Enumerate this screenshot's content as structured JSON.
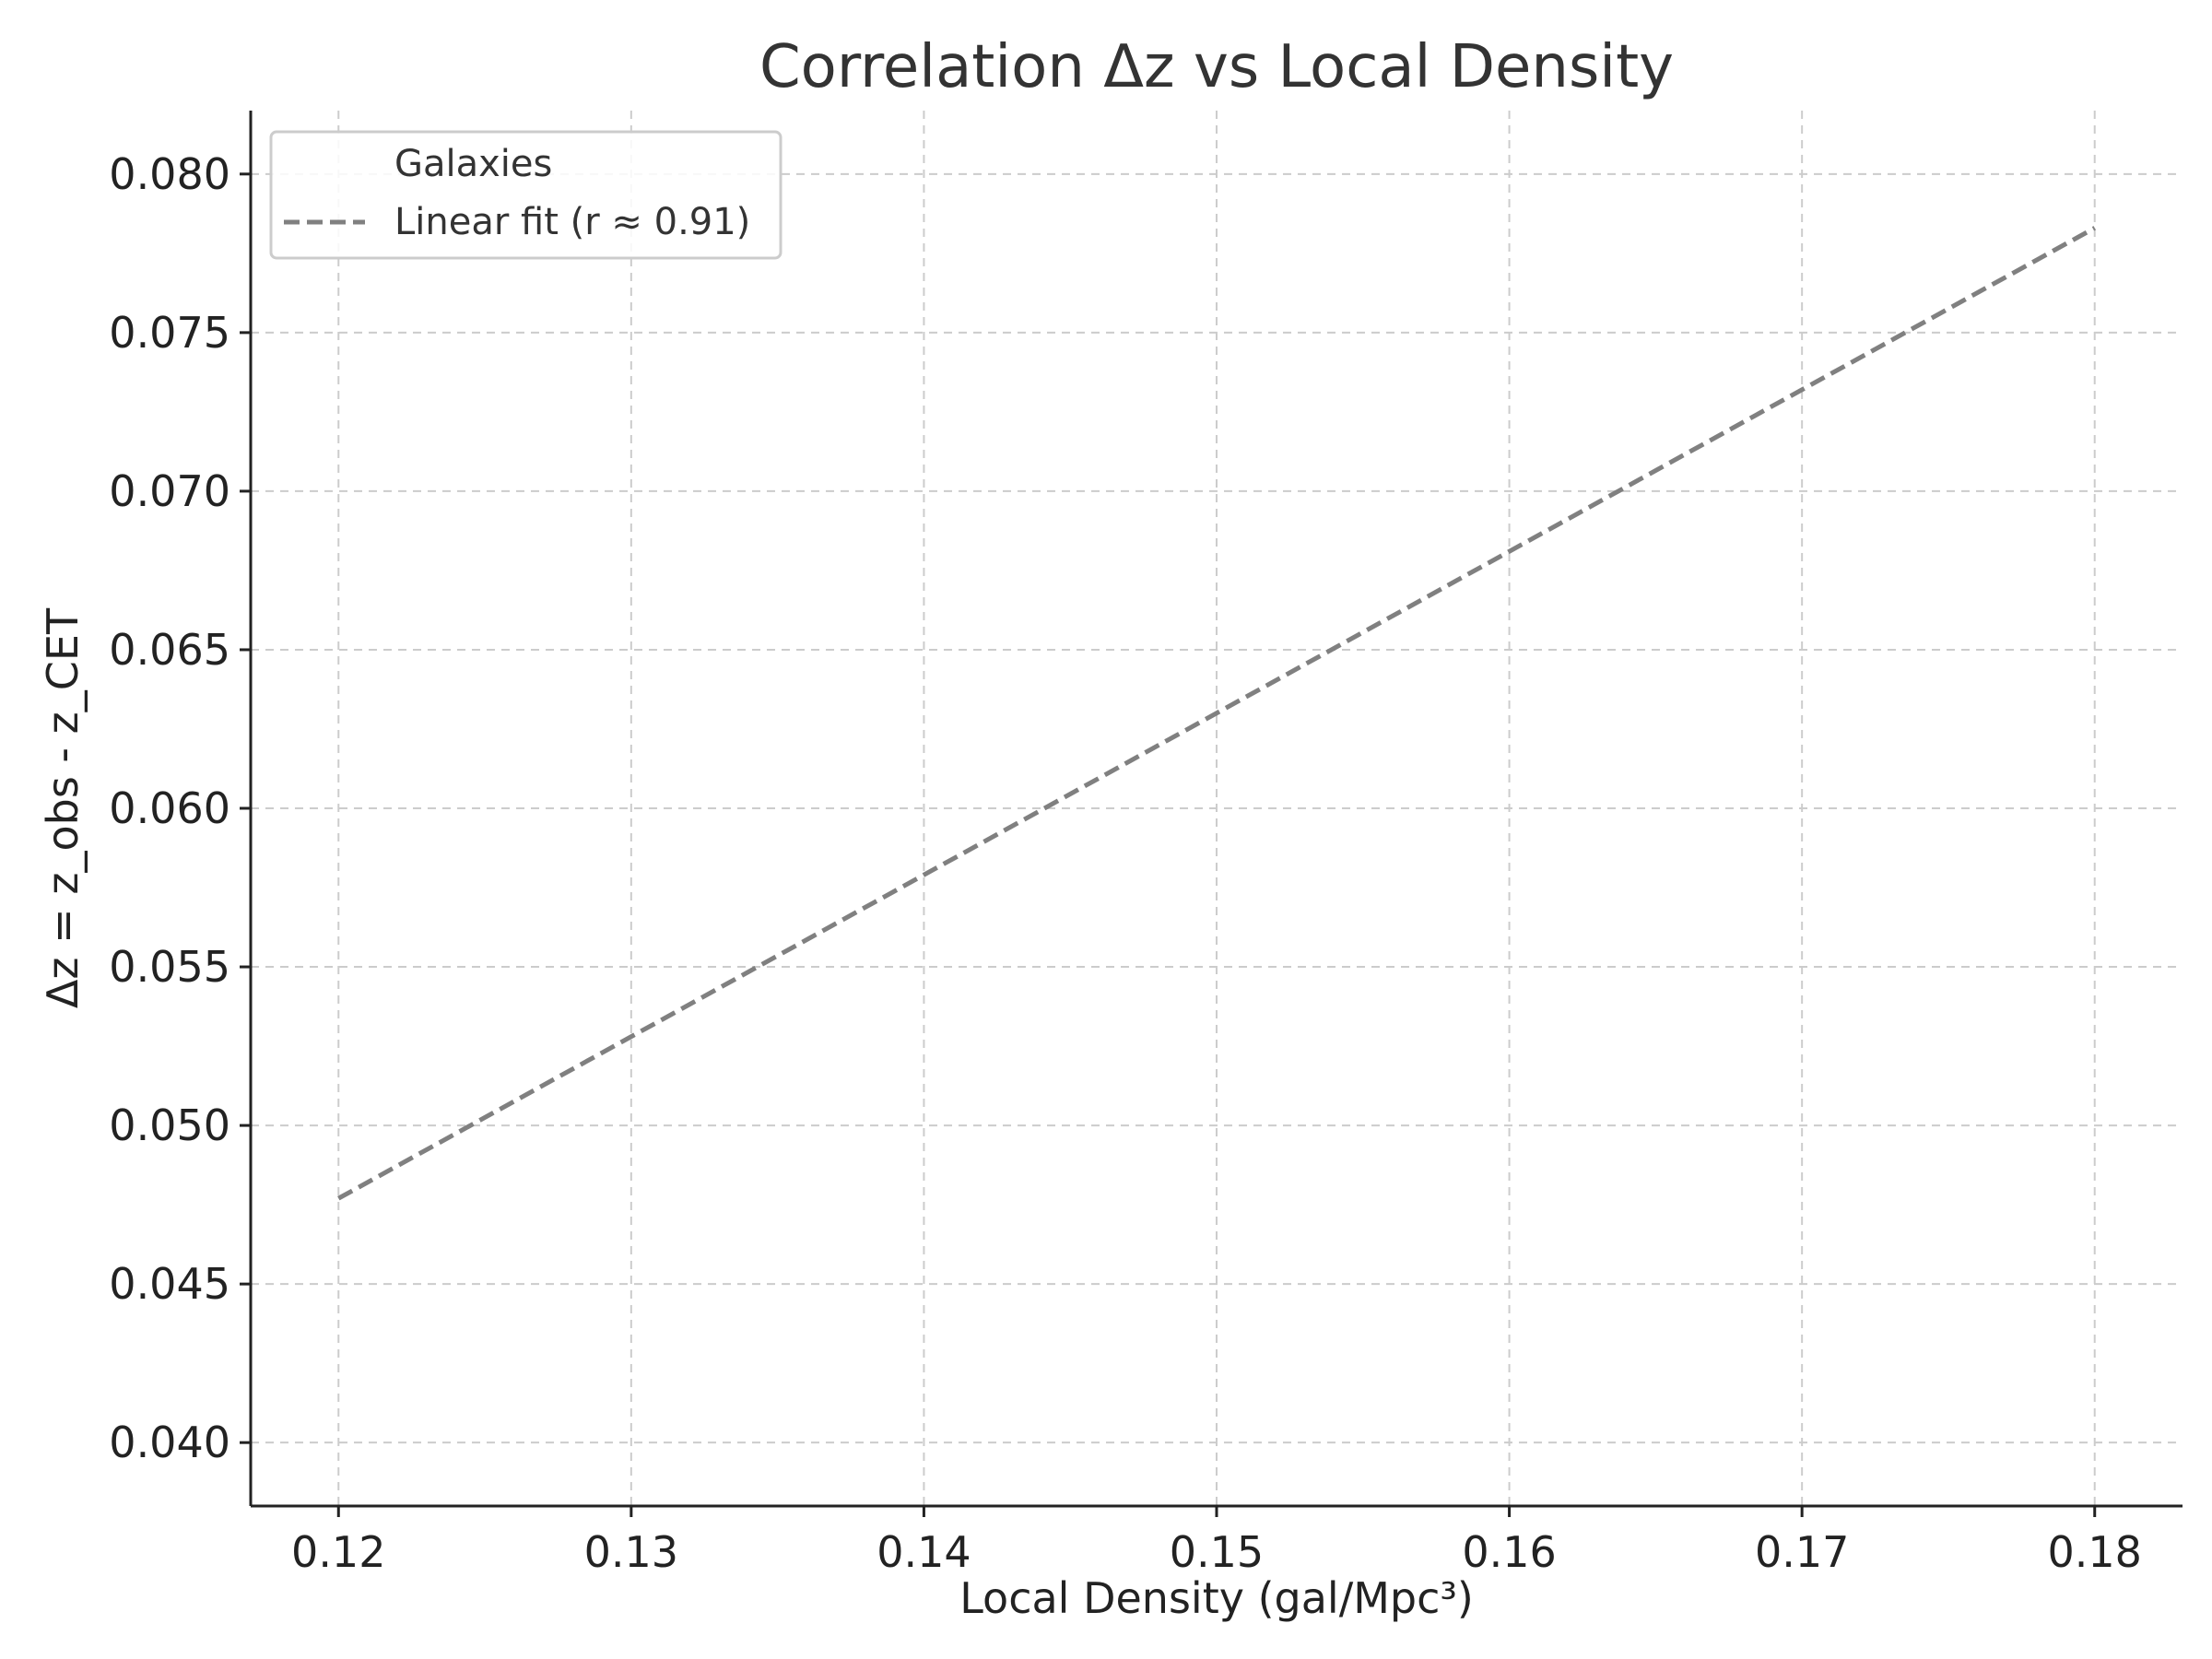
{
  "chart_data": {
    "type": "line",
    "title": "Correlation Δz vs Local Density",
    "xlabel": "Local Density (gal/Mpc³)",
    "ylabel": "Δz = z_obs - z_CET",
    "xlim": [
      0.117,
      0.183
    ],
    "ylim": [
      0.038,
      0.082
    ],
    "xticks": [
      0.12,
      0.13,
      0.14,
      0.15,
      0.16,
      0.17,
      0.18
    ],
    "xtick_labels": [
      "0.12",
      "0.13",
      "0.14",
      "0.15",
      "0.16",
      "0.17",
      "0.18"
    ],
    "yticks": [
      0.04,
      0.045,
      0.05,
      0.055,
      0.06,
      0.065,
      0.07,
      0.075,
      0.08
    ],
    "ytick_labels": [
      "0.040",
      "0.045",
      "0.050",
      "0.055",
      "0.060",
      "0.065",
      "0.070",
      "0.075",
      "0.080"
    ],
    "grid": true,
    "legend_position": "top-left",
    "series": [
      {
        "name": "Galaxies",
        "kind": "scatter",
        "x": [],
        "y": []
      },
      {
        "name": "Linear fit (r ≈ 0.91)",
        "kind": "line",
        "style": "dashed",
        "color": "#808080",
        "x": [
          0.12,
          0.18
        ],
        "y": [
          0.0477,
          0.0783
        ]
      }
    ]
  }
}
